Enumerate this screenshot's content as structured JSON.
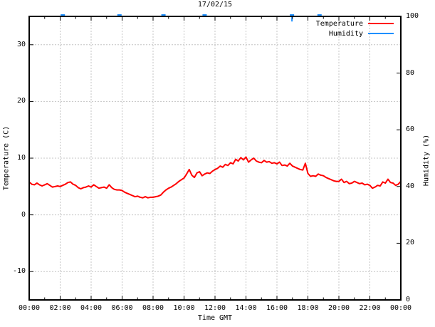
{
  "chart_data": {
    "type": "line",
    "title": "17/02/15",
    "xlabel": "Time GMT",
    "ylabel_left": "Temperature (C)",
    "ylabel_right": "Humidity (%)",
    "x_unit": "hours",
    "x_range": [
      0,
      24
    ],
    "x_major_tick_hours": 2,
    "x_minor_tick_hours": 1,
    "x_tick_labels": [
      "00:00",
      "02:00",
      "04:00",
      "06:00",
      "08:00",
      "10:00",
      "12:00",
      "14:00",
      "16:00",
      "18:00",
      "20:00",
      "22:00",
      "00:00"
    ],
    "y_left_range": [
      -15,
      35
    ],
    "y_left_ticks": [
      -10,
      0,
      10,
      20,
      30
    ],
    "y_right_range": [
      0,
      100
    ],
    "y_right_ticks": [
      0,
      20,
      40,
      60,
      80,
      100
    ],
    "grid": true,
    "background": "#ffffff",
    "grid_color": "#c4c4c4",
    "legend": {
      "position": "top-right-inside",
      "entries": [
        {
          "label": "Temperature",
          "color": "#ff0000",
          "axis": "left"
        },
        {
          "label": "Humidity",
          "color": "#1e90ff",
          "axis": "right"
        }
      ]
    },
    "series": [
      {
        "name": "Temperature",
        "axis": "left",
        "color": "#ff0000",
        "start_hour": 0,
        "step_minutes": 10,
        "values": [
          5.8,
          5.4,
          5.3,
          5.6,
          5.3,
          5.1,
          5.3,
          5.5,
          5.2,
          4.9,
          5.0,
          5.1,
          5.0,
          5.2,
          5.4,
          5.7,
          5.8,
          5.4,
          5.2,
          4.8,
          4.6,
          4.8,
          4.9,
          5.1,
          4.9,
          5.3,
          5.0,
          4.7,
          4.8,
          4.9,
          4.7,
          5.3,
          4.8,
          4.5,
          4.4,
          4.4,
          4.3,
          4.0,
          3.8,
          3.6,
          3.4,
          3.2,
          3.3,
          3.1,
          3.0,
          3.2,
          3.0,
          3.1,
          3.1,
          3.2,
          3.3,
          3.5,
          4.0,
          4.4,
          4.7,
          4.9,
          5.2,
          5.5,
          5.9,
          6.2,
          6.5,
          7.2,
          8.0,
          7.0,
          6.6,
          7.4,
          7.6,
          6.9,
          7.2,
          7.4,
          7.3,
          7.7,
          8.0,
          8.2,
          8.6,
          8.4,
          8.9,
          8.7,
          9.2,
          9.0,
          9.8,
          9.5,
          10.1,
          9.7,
          10.2,
          9.3,
          9.7,
          10.0,
          9.5,
          9.3,
          9.2,
          9.6,
          9.3,
          9.4,
          9.1,
          9.2,
          9.0,
          9.3,
          8.7,
          8.8,
          8.6,
          9.1,
          8.6,
          8.4,
          8.2,
          8.0,
          7.9,
          9.1,
          7.3,
          6.8,
          6.9,
          6.8,
          7.2,
          7.0,
          6.9,
          6.6,
          6.4,
          6.2,
          6.0,
          5.9,
          5.9,
          6.3,
          5.7,
          5.9,
          5.5,
          5.6,
          5.9,
          5.7,
          5.5,
          5.6,
          5.3,
          5.4,
          5.2,
          4.7,
          4.9,
          5.2,
          5.1,
          5.8,
          5.6,
          6.3,
          5.7,
          5.6,
          5.2,
          5.4,
          5.9
        ]
      },
      {
        "name": "Humidity",
        "axis": "right",
        "color": "#1e90ff",
        "baseline": 100,
        "dips": [
          {
            "hour": 2.17,
            "value": 99.6
          },
          {
            "hour": 5.83,
            "value": 99.6
          },
          {
            "hour": 8.67,
            "value": 99.6
          },
          {
            "hour": 11.33,
            "value": 99.6
          },
          {
            "hour": 16.97,
            "value": 98.2
          },
          {
            "hour": 18.75,
            "value": 99.6
          }
        ]
      }
    ]
  }
}
